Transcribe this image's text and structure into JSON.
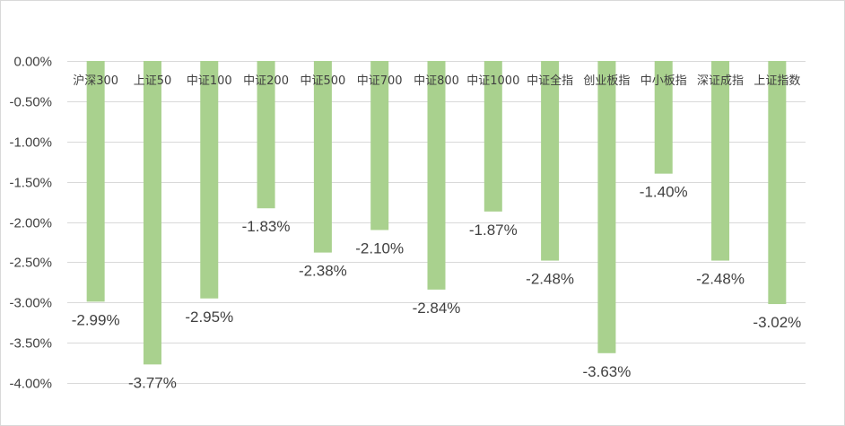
{
  "chart_data": {
    "type": "bar",
    "title": "",
    "xlabel": "",
    "ylabel": "",
    "categories": [
      "沪深300",
      "上证50",
      "中证100",
      "中证200",
      "中证500",
      "中证700",
      "中证800",
      "中证1000",
      "中证全指",
      "创业板指",
      "中小板指",
      "深证成指",
      "上证指数"
    ],
    "values": [
      -2.99,
      -3.77,
      -2.95,
      -1.83,
      -2.38,
      -2.1,
      -2.84,
      -1.87,
      -2.48,
      -3.63,
      -1.4,
      -2.48,
      -3.02
    ],
    "data_labels": [
      "-2.99%",
      "-3.77%",
      "-2.95%",
      "-1.83%",
      "-2.38%",
      "-2.10%",
      "-2.84%",
      "-1.87%",
      "-2.48%",
      "-3.63%",
      "-1.40%",
      "-2.48%",
      "-3.02%"
    ],
    "ylim": [
      -4.0,
      0.0
    ],
    "yticks": [
      0.0,
      -0.5,
      -1.0,
      -1.5,
      -2.0,
      -2.5,
      -3.0,
      -3.5,
      -4.0
    ],
    "ytick_labels": [
      "0.00%",
      "-0.50%",
      "-1.00%",
      "-1.50%",
      "-2.00%",
      "-2.50%",
      "-3.00%",
      "-3.50%",
      "-4.00%"
    ],
    "grid": true,
    "legend": "none",
    "colors": {
      "bar": "#a9d18e",
      "grid": "#d9d9d9",
      "text": "#404040",
      "border": "#d9d9d9"
    }
  }
}
